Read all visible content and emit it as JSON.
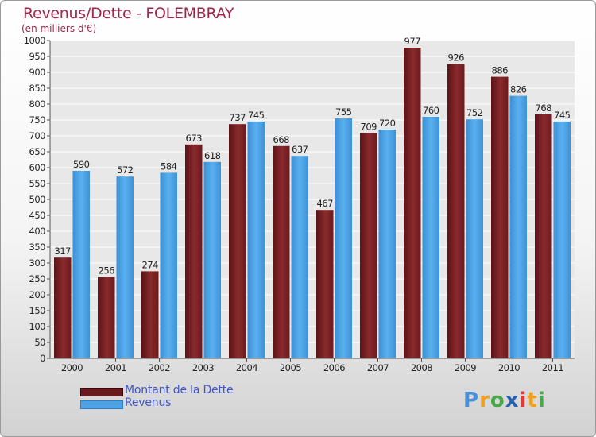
{
  "chart_data": {
    "type": "bar",
    "title": "Revenus/Dette - FOLEMBRAY",
    "subtitle": "(en milliers d'€)",
    "categories": [
      "2000",
      "2001",
      "2002",
      "2003",
      "2004",
      "2005",
      "2006",
      "2007",
      "2008",
      "2009",
      "2010",
      "2011"
    ],
    "series": [
      {
        "name": "Montant de la Dette",
        "color": "#7a1f22",
        "values": [
          317,
          256,
          274,
          673,
          737,
          668,
          467,
          709,
          977,
          926,
          886,
          768
        ]
      },
      {
        "name": "Revenus",
        "color": "#4ea2e4",
        "values": [
          590,
          572,
          584,
          618,
          745,
          637,
          755,
          720,
          760,
          752,
          826,
          745
        ]
      }
    ],
    "ylim": [
      0,
      1000
    ],
    "ytick_step": 50,
    "grid": true,
    "legend_placement": "bottom-left"
  },
  "logo": {
    "text": "Proxiti",
    "letters": [
      {
        "ch": "P",
        "color": "#4a90d9"
      },
      {
        "ch": "r",
        "color": "#f0a020"
      },
      {
        "ch": "o",
        "color": "#4aa84a"
      },
      {
        "ch": "x",
        "color": "#2b5fb0"
      },
      {
        "ch": "i",
        "color": "#e23a3a"
      },
      {
        "ch": "t",
        "color": "#f0a020"
      },
      {
        "ch": "i",
        "color": "#4aa84a"
      }
    ]
  }
}
